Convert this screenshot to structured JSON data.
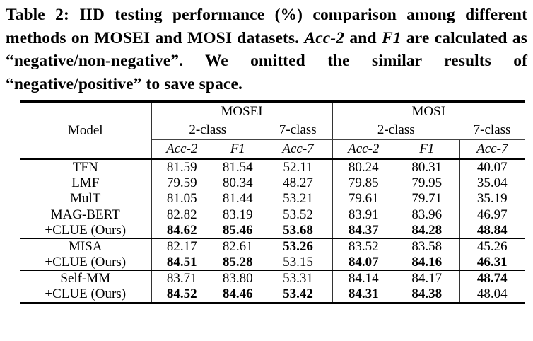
{
  "caption": {
    "part1": "Table 2: IID testing performance (%) comparison among different methods on MOSEI and MOSI datasets. ",
    "acc2_italic": "Acc-2",
    "part2": " and ",
    "f1_italic": "F1",
    "part3": " are calculated as “negative/non-negative”. We omitted the similar results of “negative/positive” to save space."
  },
  "table": {
    "header": {
      "model": "Model",
      "group1": "MOSEI",
      "group2": "MOSI",
      "sub": [
        "2-class",
        "7-class",
        "2-class",
        "7-class"
      ],
      "metrics": [
        "Acc-2",
        "F1",
        "Acc-7",
        "Acc-2",
        "F1",
        "Acc-7"
      ]
    },
    "rows": [
      {
        "model": "TFN",
        "cells": [
          "81.59",
          "81.54",
          "52.11",
          "80.24",
          "80.31",
          "40.07"
        ],
        "bold": [
          false,
          false,
          false,
          false,
          false,
          false
        ]
      },
      {
        "model": "LMF",
        "cells": [
          "79.59",
          "80.34",
          "48.27",
          "79.85",
          "79.95",
          "35.04"
        ],
        "bold": [
          false,
          false,
          false,
          false,
          false,
          false
        ]
      },
      {
        "model": "MulT",
        "cells": [
          "81.05",
          "81.44",
          "53.21",
          "79.61",
          "79.71",
          "35.19"
        ],
        "bold": [
          false,
          false,
          false,
          false,
          false,
          false
        ]
      },
      {
        "model": "MAG-BERT",
        "cells": [
          "82.82",
          "83.19",
          "53.52",
          "83.91",
          "83.96",
          "46.97"
        ],
        "bold": [
          false,
          false,
          false,
          false,
          false,
          false
        ]
      },
      {
        "model": "+CLUE (Ours)",
        "cells": [
          "84.62",
          "85.46",
          "53.68",
          "84.37",
          "84.28",
          "48.84"
        ],
        "bold": [
          true,
          true,
          true,
          true,
          true,
          true
        ]
      },
      {
        "model": "MISA",
        "cells": [
          "82.17",
          "82.61",
          "53.26",
          "83.52",
          "83.58",
          "45.26"
        ],
        "bold": [
          false,
          false,
          true,
          false,
          false,
          false
        ]
      },
      {
        "model": "+CLUE (Ours)",
        "cells": [
          "84.51",
          "85.28",
          "53.15",
          "84.07",
          "84.16",
          "46.31"
        ],
        "bold": [
          true,
          true,
          false,
          true,
          true,
          true
        ]
      },
      {
        "model": "Self-MM",
        "cells": [
          "83.71",
          "83.80",
          "53.31",
          "84.14",
          "84.17",
          "48.74"
        ],
        "bold": [
          false,
          false,
          false,
          false,
          false,
          true
        ]
      },
      {
        "model": "+CLUE (Ours)",
        "cells": [
          "84.52",
          "84.46",
          "53.42",
          "84.31",
          "84.38",
          "48.04"
        ],
        "bold": [
          true,
          true,
          true,
          true,
          true,
          false
        ]
      }
    ]
  }
}
